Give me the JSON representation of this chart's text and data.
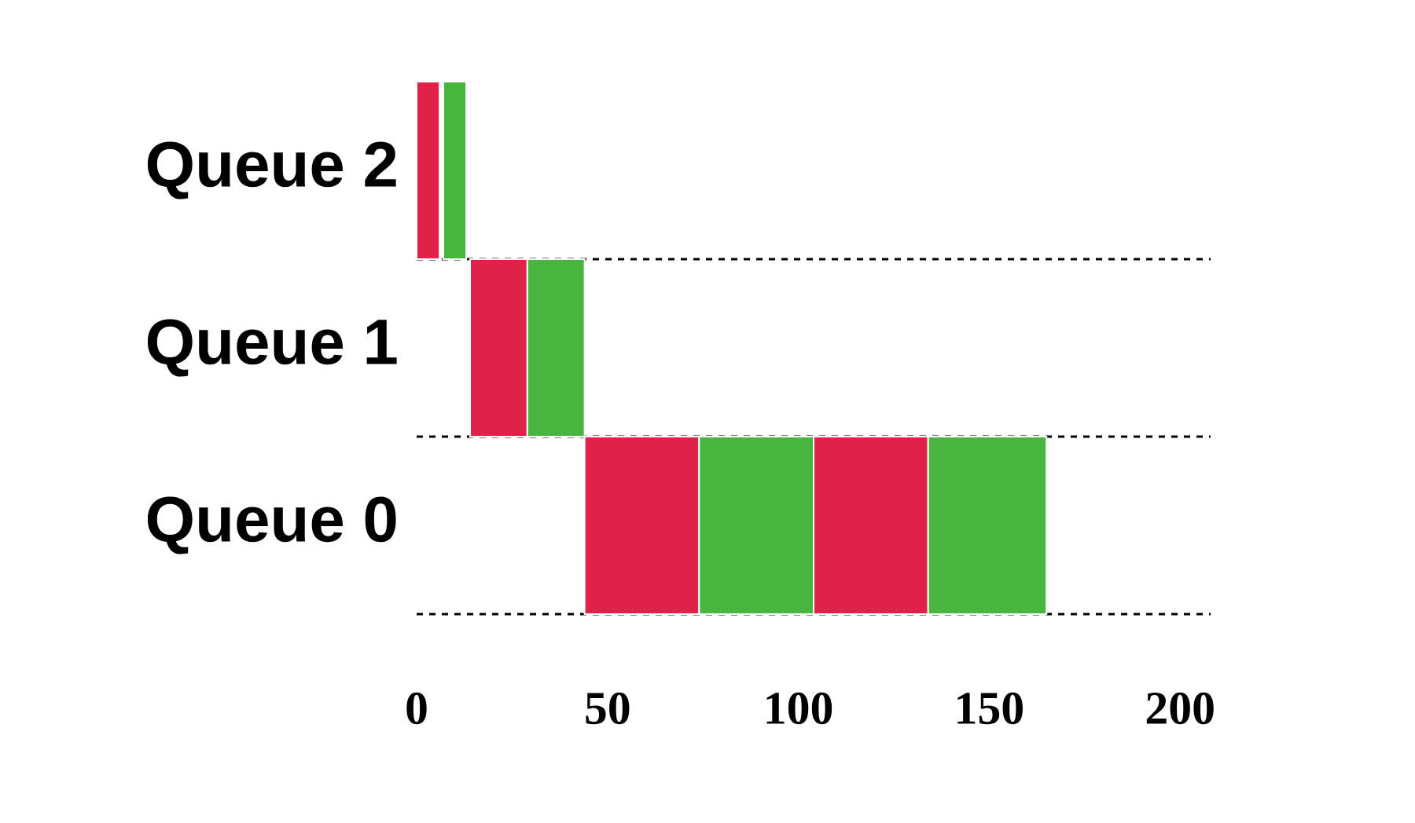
{
  "chart_data": {
    "type": "bar",
    "orientation": "horizontal",
    "categories": [
      "Queue 2",
      "Queue 1",
      "Queue 0"
    ],
    "series": [
      {
        "color": "#e0224a",
        "base": [
          0,
          14,
          44
        ],
        "values": [
          6,
          15,
          30
        ]
      },
      {
        "color": "#48b53e",
        "base": [
          7,
          29,
          74
        ],
        "values": [
          6,
          15,
          30
        ]
      },
      {
        "color": "#e0224a",
        "base": [
          null,
          null,
          104
        ],
        "values": [
          null,
          null,
          30
        ]
      },
      {
        "color": "#48b53e",
        "base": [
          null,
          null,
          134
        ],
        "values": [
          null,
          null,
          31
        ]
      }
    ],
    "xlim": [
      0,
      208
    ],
    "xticks": [
      0,
      50,
      100,
      150,
      200
    ],
    "grid": "y"
  }
}
